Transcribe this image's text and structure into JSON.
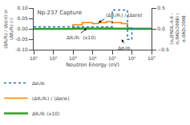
{
  "chart_data": {
    "type": "step",
    "title": "Np-237 Capture",
    "x_label": "Neutron Energy (eV)",
    "y_label": "(ΔRᵢ/Rᵢ) / (Δσ/σ) or (ΔRᵢ/Rᵢ) (-)",
    "y2_label": "(σᵢ,JENDL-4.0 - σᵢ,0AD/2008) / σᵢ,0AD/2008",
    "log": "x",
    "grid": false,
    "legend": "lower left",
    "xlim": [
      10,
      10000000
    ],
    "xticks": [
      {
        "value": 10,
        "label": "10¹"
      },
      {
        "value": 100,
        "label": "10²"
      },
      {
        "value": 1000,
        "label": "10³"
      },
      {
        "value": 10000,
        "label": "10⁴"
      },
      {
        "value": 100000,
        "label": "10⁵"
      },
      {
        "value": 1000000,
        "label": "10⁶"
      },
      {
        "value": 10000000,
        "label": "10⁷"
      }
    ],
    "ylim": [
      -0.1,
      0.1
    ],
    "yticks": [
      {
        "value": -0.1,
        "label": "-0.10"
      },
      -0.05,
      {
        "value": 0.0,
        "label": "0.00"
      },
      0.05,
      {
        "value": 0.1,
        "label": "0.10"
      }
    ],
    "y2lim": [
      -0.5,
      0.5
    ],
    "y2ticks": [
      {
        "value": -0.5,
        "label": "−0.5"
      },
      {
        "value": 0.0,
        "label": "0.0"
      },
      0.5
    ],
    "series": [
      {
        "name": "Δσᵢ/σᵢ",
        "axis": "y2",
        "line_style": "dotted",
        "x": [
          10.0,
          100000.0,
          100000.0,
          600000.0,
          600000.0,
          1000000.0,
          1000000.0,
          10000000.0
        ],
        "values": [
          0.05,
          0.05,
          0.45,
          0.45,
          -0.25,
          -0.25,
          0.0,
          0.0
        ]
      },
      {
        "name": "(ΔRᵢ/Rᵢ) / (Δσ/σᵢ)",
        "axis": "y",
        "line_style": "solid",
        "x": [
          10.0,
          1000.0,
          1000.0,
          3000.0,
          3000.0,
          10000.0,
          10000.0,
          20000.0,
          20000.0,
          50000.0,
          50000.0,
          100000.0,
          100000.0,
          300000.0,
          300000.0,
          600000.0,
          600000.0,
          1000000.0,
          1000000.0,
          10000000.0
        ],
        "values": [
          0.0,
          0.0,
          0.02,
          0.02,
          0.03,
          0.03,
          0.025,
          0.025,
          0.03,
          0.03,
          0.035,
          0.035,
          0.03,
          0.03,
          0.025,
          0.025,
          0.005,
          0.005,
          0.002,
          0.002
        ]
      },
      {
        "name": "ΔRᵢ/Rᵢ (x10)",
        "axis": "y",
        "line_style": "solid",
        "x": [
          10.0,
          1000.0,
          1000.0,
          3000.0,
          3000.0,
          10000.0,
          10000.0,
          20000.0,
          20000.0,
          50000.0,
          50000.0,
          100000.0,
          100000.0,
          300000.0,
          300000.0,
          600000.0,
          600000.0,
          1000000.0,
          1000000.0,
          10000000.0
        ],
        "values": [
          0.0,
          0.0,
          0.002,
          0.002,
          0.002,
          0.002,
          0.0015,
          0.0015,
          0.002,
          0.002,
          0.002,
          0.002,
          0.0015,
          0.0015,
          0.001,
          0.001,
          0.0003,
          0.0003,
          0.0001,
          0.0001
        ]
      }
    ],
    "annotations": [
      {
        "text": "(ΔRᵢ/Rᵢ) / (Δσ/σ)",
        "x": 20000,
        "y": 0.031,
        "text_x": 40000,
        "text_y": 0.047
      },
      {
        "text": "ΔRᵢ/Rᵢ  (x10)",
        "x": 5000,
        "y": 0.002,
        "text_x": 2500,
        "text_y": -0.02
      },
      {
        "text": "Δσᵢ/σᵢ",
        "x": 300000,
        "y": -0.05,
        "text_x": 400000,
        "text_y": -0.068
      }
    ]
  }
}
